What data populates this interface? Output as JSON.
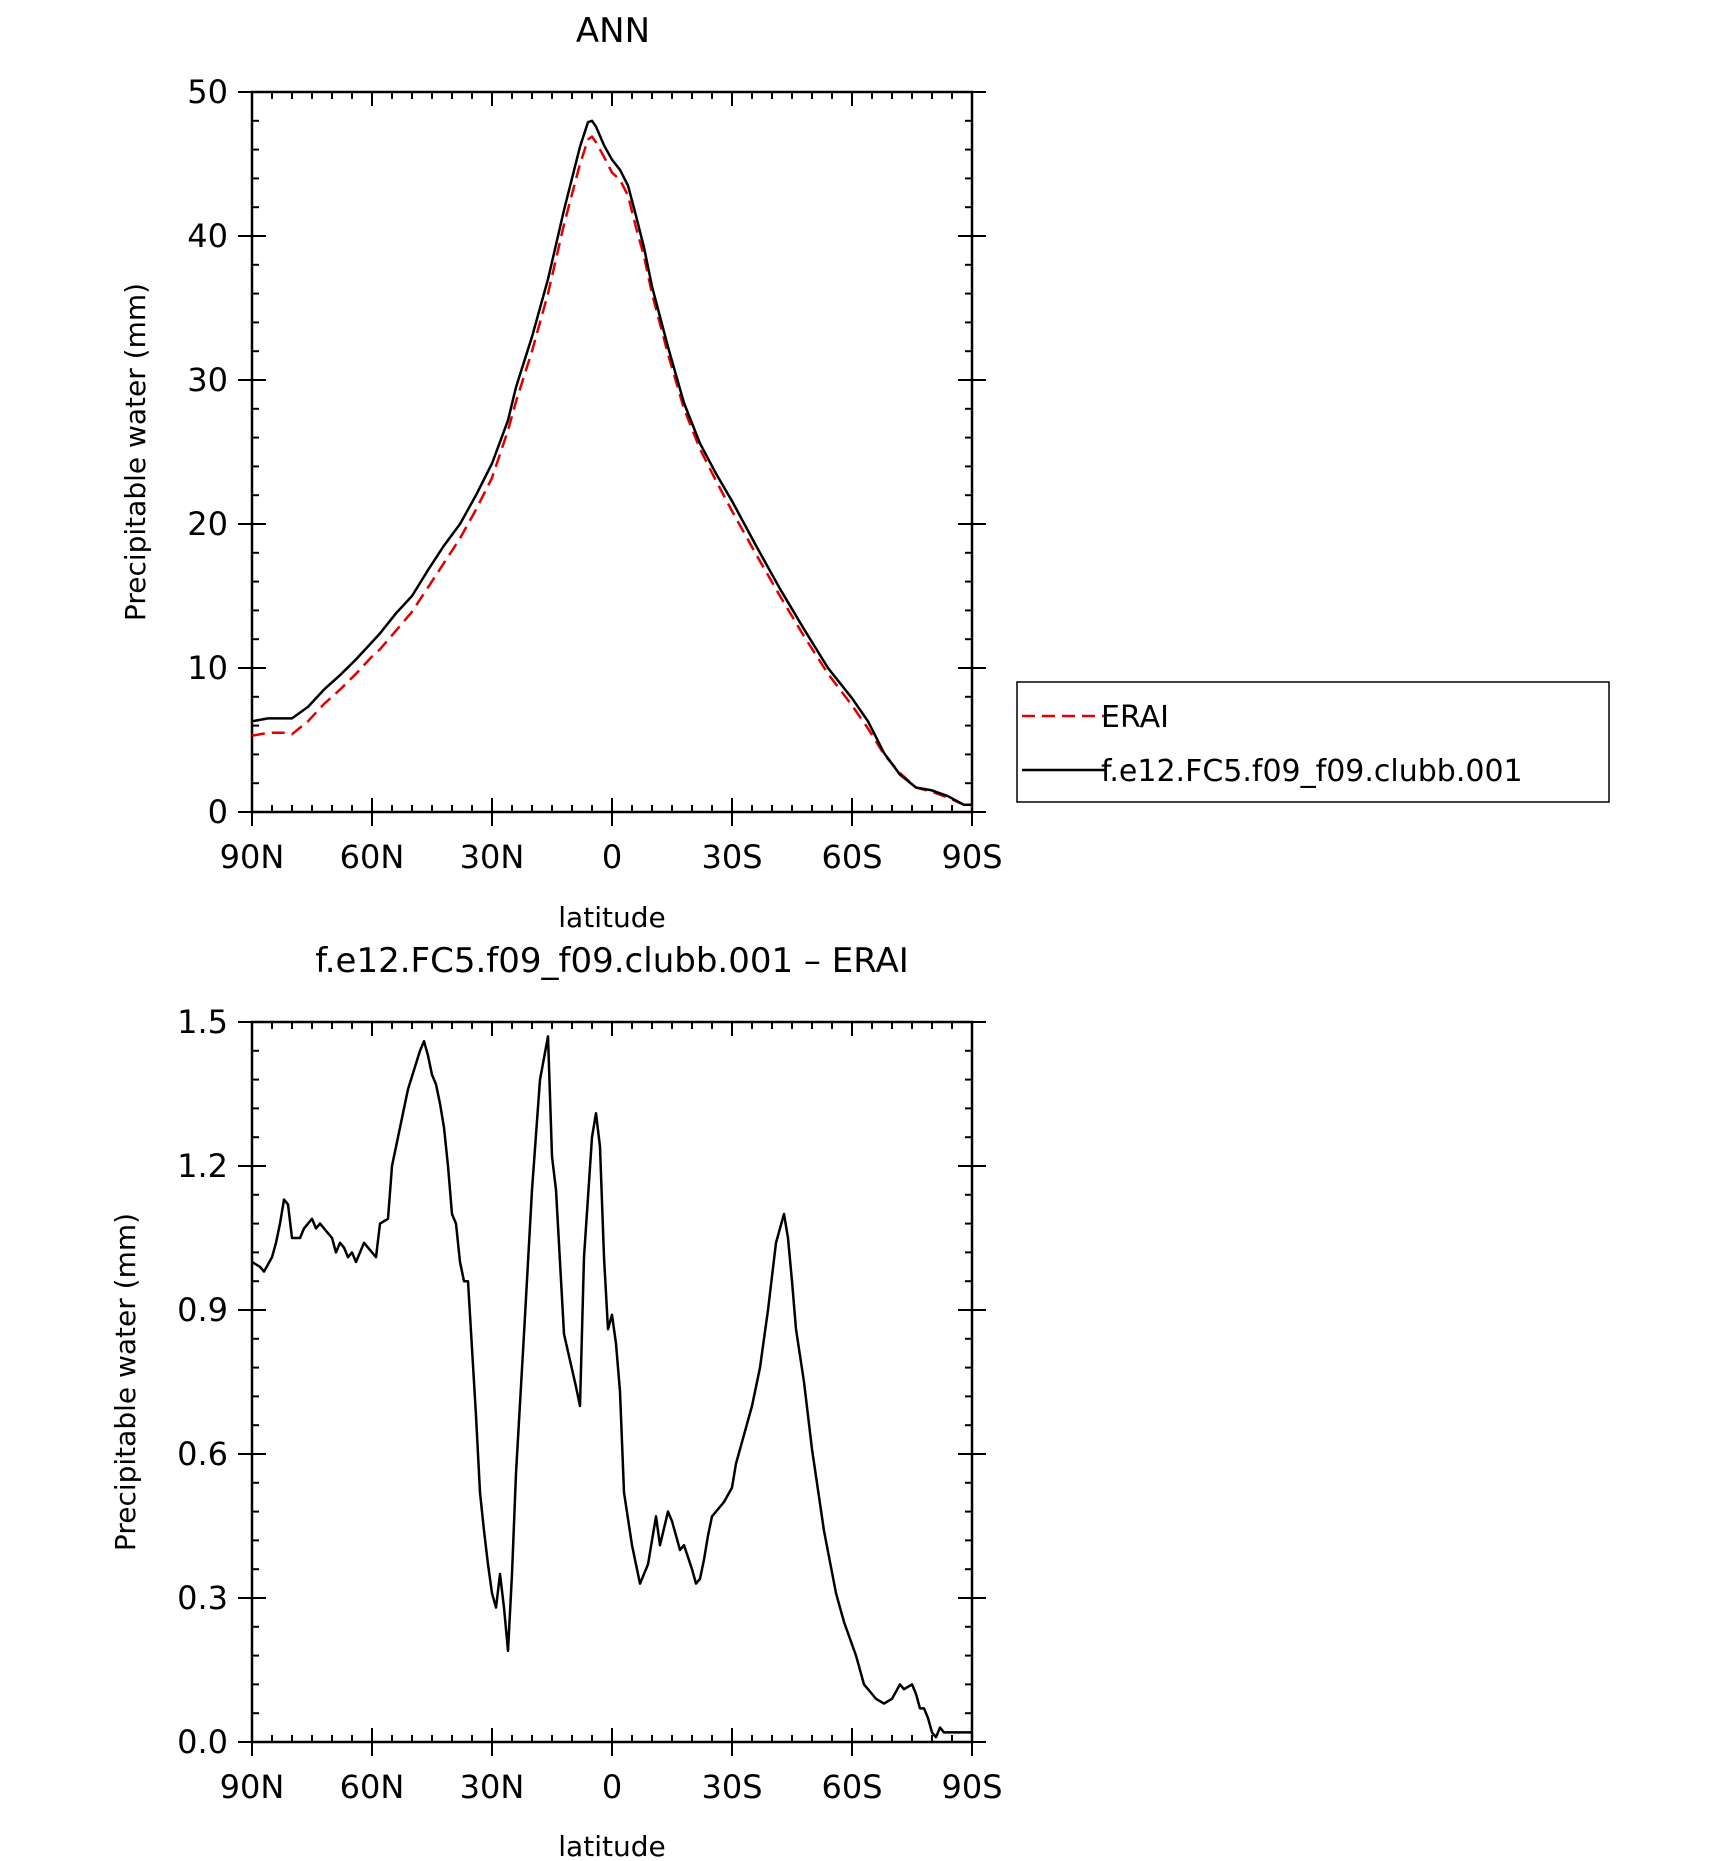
{
  "chart_data": [
    {
      "type": "line",
      "title": "ANN",
      "xlabel": "latitude",
      "ylabel": "Precipitable water (mm)",
      "ylim": [
        0,
        50
      ],
      "yticks": [
        "0",
        "10",
        "20",
        "30",
        "40",
        "50"
      ],
      "xlim": [
        90,
        -90
      ],
      "xticks": [
        {
          "value": 90,
          "label": "90N"
        },
        {
          "value": 60,
          "label": "60N"
        },
        {
          "value": 30,
          "label": "30N"
        },
        {
          "value": 0,
          "label": "0"
        },
        {
          "value": -30,
          "label": "30S"
        },
        {
          "value": -60,
          "label": "60S"
        },
        {
          "value": -90,
          "label": "90S"
        }
      ],
      "legend_position": "right",
      "series": [
        {
          "name": "ERAI",
          "color": "#e00000",
          "dash": true,
          "x": [
            90,
            86,
            82,
            80,
            76,
            72,
            68,
            64,
            60,
            58,
            54,
            50,
            46,
            42,
            38,
            34,
            30,
            26,
            24,
            20,
            16,
            12,
            8,
            6,
            5,
            4,
            2,
            0,
            -2,
            -4,
            -6,
            -8,
            -10,
            -14,
            -18,
            -22,
            -26,
            -30,
            -36,
            -42,
            -48,
            -54,
            -60,
            -64,
            -66,
            -68,
            -72,
            -76,
            -80,
            -84,
            -88,
            -90
          ],
          "y": [
            5.3,
            5.5,
            5.5,
            5.4,
            6.3,
            7.5,
            8.5,
            9.6,
            10.8,
            11.3,
            12.6,
            13.9,
            15.6,
            17.3,
            19.0,
            21.0,
            23.2,
            26.5,
            28.5,
            32.0,
            36.0,
            40.8,
            45.0,
            46.7,
            46.9,
            46.5,
            45.5,
            44.4,
            43.9,
            42.8,
            40.6,
            38.6,
            36.0,
            31.8,
            28.0,
            25.2,
            23.0,
            20.9,
            17.9,
            15.0,
            12.2,
            9.6,
            7.4,
            5.8,
            4.9,
            4.0,
            2.7,
            1.7,
            1.4,
            1.0,
            0.5,
            0.4
          ]
        },
        {
          "name": "f.e12.FC5.f09_f09.clubb.001",
          "color": "#000000",
          "dash": false,
          "x": [
            90,
            86,
            82,
            80,
            76,
            72,
            68,
            64,
            60,
            58,
            54,
            50,
            46,
            42,
            38,
            34,
            30,
            26,
            24,
            20,
            16,
            12,
            8,
            6,
            5,
            4,
            2,
            0,
            -2,
            -4,
            -6,
            -8,
            -10,
            -14,
            -18,
            -22,
            -26,
            -30,
            -36,
            -42,
            -48,
            -54,
            -60,
            -64,
            -66,
            -68,
            -72,
            -76,
            -80,
            -84,
            -88,
            -90
          ],
          "y": [
            6.3,
            6.5,
            6.5,
            6.5,
            7.3,
            8.5,
            9.5,
            10.6,
            11.8,
            12.4,
            13.8,
            15.0,
            16.8,
            18.5,
            20.0,
            22.0,
            24.2,
            27.2,
            29.5,
            33.0,
            37.0,
            41.8,
            46.2,
            47.9,
            48.0,
            47.6,
            46.3,
            45.3,
            44.6,
            43.5,
            41.4,
            39.2,
            36.5,
            32.3,
            28.4,
            25.6,
            23.5,
            21.6,
            18.5,
            15.5,
            12.7,
            10.0,
            7.9,
            6.3,
            5.2,
            4.1,
            2.6,
            1.7,
            1.5,
            1.1,
            0.5,
            0.5
          ]
        }
      ]
    },
    {
      "type": "line",
      "title": "f.e12.FC5.f09_f09.clubb.001 – ERAI",
      "xlabel": "latitude",
      "ylabel": "Precipitable water (mm)",
      "ylim": [
        0,
        1.5
      ],
      "yticks": [
        "0.0",
        "0.3",
        "0.6",
        "0.9",
        "1.2",
        "1.5"
      ],
      "xlim": [
        90,
        -90
      ],
      "xticks": [
        {
          "value": 90,
          "label": "90N"
        },
        {
          "value": 60,
          "label": "60N"
        },
        {
          "value": 30,
          "label": "30N"
        },
        {
          "value": 0,
          "label": "0"
        },
        {
          "value": -30,
          "label": "30S"
        },
        {
          "value": -60,
          "label": "60S"
        },
        {
          "value": -90,
          "label": "90S"
        }
      ],
      "series": [
        {
          "color": "#000000",
          "dash": false,
          "x": [
            90,
            88,
            87,
            85,
            84,
            83,
            82,
            81,
            80,
            78,
            77,
            75,
            74,
            73,
            71,
            70,
            69,
            68,
            67,
            66,
            65,
            64,
            62,
            61,
            59,
            58,
            56,
            55,
            52,
            51,
            48,
            47,
            46,
            45,
            44,
            43,
            42,
            41,
            40,
            39,
            38,
            37,
            36,
            35,
            34,
            33,
            32,
            31,
            30,
            29,
            28,
            27,
            26,
            25,
            24,
            22,
            20,
            18,
            16,
            15,
            14,
            12,
            9,
            8,
            7,
            5,
            4,
            3,
            2,
            1,
            0,
            -1,
            -2,
            -3,
            -5,
            -7,
            -9,
            -11,
            -12,
            -14,
            -15,
            -16,
            -17,
            -18,
            -20,
            -21,
            -22,
            -23,
            -24,
            -25,
            -28,
            -30,
            -31,
            -33,
            -35,
            -37,
            -39,
            -41,
            -43,
            -44,
            -45,
            -46,
            -48,
            -50,
            -53,
            -56,
            -58,
            -61,
            -63,
            -64,
            -65,
            -66,
            -68,
            -70,
            -72,
            -73,
            -75,
            -76,
            -77,
            -78,
            -79,
            -80,
            -81,
            -82,
            -83,
            -84,
            -85,
            -86,
            -87,
            -88,
            -89,
            -90
          ],
          "y": [
            1.0,
            0.99,
            0.98,
            1.01,
            1.04,
            1.08,
            1.13,
            1.12,
            1.05,
            1.05,
            1.07,
            1.09,
            1.07,
            1.08,
            1.06,
            1.05,
            1.02,
            1.04,
            1.03,
            1.01,
            1.02,
            1.0,
            1.04,
            1.03,
            1.01,
            1.08,
            1.09,
            1.2,
            1.32,
            1.36,
            1.44,
            1.46,
            1.43,
            1.39,
            1.37,
            1.33,
            1.28,
            1.2,
            1.1,
            1.08,
            1.0,
            0.96,
            0.96,
            0.82,
            0.68,
            0.52,
            0.44,
            0.37,
            0.31,
            0.28,
            0.35,
            0.28,
            0.19,
            0.35,
            0.56,
            0.85,
            1.15,
            1.38,
            1.47,
            1.22,
            1.15,
            0.85,
            0.74,
            0.7,
            1.01,
            1.26,
            1.31,
            1.24,
            1.01,
            0.86,
            0.89,
            0.83,
            0.73,
            0.52,
            0.41,
            0.33,
            0.37,
            0.47,
            0.41,
            0.48,
            0.46,
            0.43,
            0.4,
            0.41,
            0.36,
            0.33,
            0.34,
            0.38,
            0.43,
            0.47,
            0.5,
            0.53,
            0.58,
            0.64,
            0.7,
            0.78,
            0.9,
            1.04,
            1.1,
            1.05,
            0.96,
            0.86,
            0.75,
            0.61,
            0.44,
            0.31,
            0.25,
            0.18,
            0.12,
            0.11,
            0.1,
            0.09,
            0.08,
            0.09,
            0.12,
            0.11,
            0.12,
            0.1,
            0.07,
            0.07,
            0.05,
            0.02,
            0.01,
            0.03,
            0.02,
            0.02,
            0.02,
            0.02,
            0.02,
            0.02,
            0.02,
            0.02
          ]
        }
      ]
    }
  ]
}
